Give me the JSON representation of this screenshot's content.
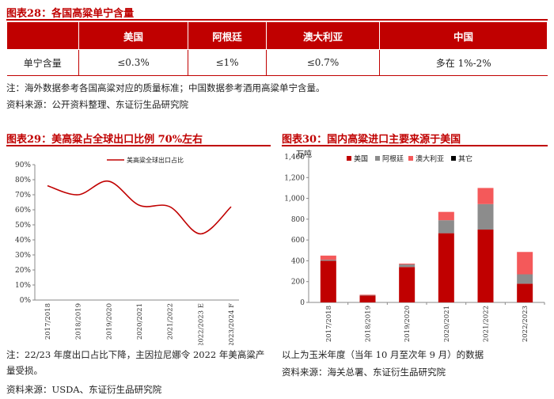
{
  "table_section": {
    "title": "图表28：各国高粱单宁含量",
    "headers": [
      "",
      "美国",
      "阿根廷",
      "澳大利亚",
      "中国"
    ],
    "row": [
      "单宁含量",
      "≤0.3%",
      "≤1%",
      "≤0.7%",
      "多在 1%-2%"
    ],
    "note": "注：海外数据参考各国高粱对应的质量标准；中国数据参考酒用高粱单宁含量。",
    "source": "资料来源：公开资料整理、东证衍生品研究院"
  },
  "left_section": {
    "title": "图表29：美高粱占全球出口比例 70%左右",
    "note_line1": "注：22/23 年度出口占比下降，主因拉尼娜令 2022 年美高粱产",
    "note_line2": "量受损。",
    "source": "资料来源：USDA、东证衍生品研究院"
  },
  "right_section": {
    "title": "图表30：国内高粱进口主要来源于美国",
    "note": "以上为玉米年度（当年 10 月至次年 9 月）的数据",
    "source": "资料来源：海关总署、东证衍生品研究院"
  },
  "chart_data": [
    {
      "type": "line",
      "title": "",
      "x": [
        "2017/2018",
        "2018/2019",
        "2019/2020",
        "2020/2021",
        "2021/2022",
        "2022/2023 E",
        "2023/2024 F"
      ],
      "series": [
        {
          "name": "美高粱全球出口占比",
          "values": [
            76,
            70,
            79,
            63,
            62,
            44,
            62
          ],
          "color": "#c00000"
        }
      ],
      "ylim": [
        0,
        90
      ],
      "yticks": [
        "0%",
        "10%",
        "20%",
        "30%",
        "40%",
        "50%",
        "60%",
        "70%",
        "80%",
        "90%"
      ],
      "legend": "top-center",
      "grid": false
    },
    {
      "type": "bar",
      "stacked": true,
      "ylabel": "万吨",
      "categories": [
        "2017/2018",
        "2018/2019",
        "2019/2020",
        "2020/2021",
        "2021/2022",
        "2022/2023"
      ],
      "series": [
        {
          "name": "美国",
          "values": [
            400,
            65,
            340,
            665,
            700,
            180
          ],
          "color": "#c00000"
        },
        {
          "name": "阿根廷",
          "values": [
            10,
            5,
            25,
            125,
            245,
            90
          ],
          "color": "#8c8c8c"
        },
        {
          "name": "澳大利亚",
          "values": [
            40,
            5,
            8,
            80,
            155,
            215
          ],
          "color": "#f4595a"
        },
        {
          "name": "其它",
          "values": [
            0,
            0,
            0,
            0,
            0,
            0
          ],
          "color": "#000000"
        }
      ],
      "ylim": [
        0,
        1400
      ],
      "yticks": [
        "0",
        "200",
        "400",
        "600",
        "800",
        "1,000",
        "1,200",
        "1,400"
      ],
      "legend": "top-left",
      "grid": false
    }
  ]
}
